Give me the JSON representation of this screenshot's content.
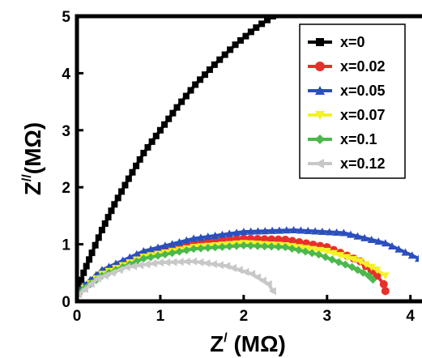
{
  "chart_data": {
    "type": "scatter",
    "title": "",
    "xlabel": {
      "main": "Z",
      "sup": "/",
      "unit": " (MΩ)"
    },
    "ylabel": {
      "main": "Z",
      "sup": "//",
      "unit": "(MΩ)"
    },
    "xlim": [
      0,
      4.1
    ],
    "ylim": [
      0,
      5
    ],
    "xticks": [
      "0",
      "1",
      "2",
      "3",
      "4"
    ],
    "yticks": [
      "0",
      "1",
      "2",
      "3",
      "4",
      "5"
    ],
    "grid": false,
    "legend_position": "top-right",
    "series": [
      {
        "name": "x=0",
        "color": "#000000",
        "marker": "square",
        "points": [
          [
            0.02,
            0.25
          ],
          [
            0.08,
            0.5
          ],
          [
            0.18,
            0.85
          ],
          [
            0.3,
            1.25
          ],
          [
            0.45,
            1.7
          ],
          [
            0.62,
            2.15
          ],
          [
            0.8,
            2.6
          ],
          [
            1.0,
            3.0
          ],
          [
            1.2,
            3.4
          ],
          [
            1.42,
            3.8
          ],
          [
            1.65,
            4.15
          ],
          [
            1.9,
            4.5
          ],
          [
            2.15,
            4.8
          ],
          [
            2.35,
            5.0
          ]
        ]
      },
      {
        "name": "x=0.02",
        "color": "#e8302a",
        "marker": "circle",
        "points": [
          [
            0.02,
            0.15
          ],
          [
            0.3,
            0.5
          ],
          [
            0.8,
            0.82
          ],
          [
            1.4,
            1.02
          ],
          [
            2.0,
            1.1
          ],
          [
            2.5,
            1.08
          ],
          [
            3.0,
            0.95
          ],
          [
            3.4,
            0.7
          ],
          [
            3.6,
            0.45
          ],
          [
            3.68,
            0.3
          ],
          [
            3.7,
            0.18
          ]
        ]
      },
      {
        "name": "x=0.05",
        "color": "#2b4fbd",
        "marker": "triangle-up",
        "points": [
          [
            0.02,
            0.2
          ],
          [
            0.3,
            0.55
          ],
          [
            0.8,
            0.88
          ],
          [
            1.4,
            1.1
          ],
          [
            2.0,
            1.22
          ],
          [
            2.6,
            1.25
          ],
          [
            3.2,
            1.2
          ],
          [
            3.7,
            1.02
          ],
          [
            4.1,
            0.75
          ]
        ]
      },
      {
        "name": "x=0.07",
        "color": "#f2f226",
        "marker": "triangle-down",
        "points": [
          [
            0.02,
            0.15
          ],
          [
            0.3,
            0.48
          ],
          [
            0.8,
            0.78
          ],
          [
            1.4,
            0.95
          ],
          [
            2.0,
            1.02
          ],
          [
            2.5,
            0.98
          ],
          [
            3.0,
            0.88
          ],
          [
            3.4,
            0.7
          ],
          [
            3.6,
            0.55
          ],
          [
            3.7,
            0.45
          ]
        ]
      },
      {
        "name": "x=0.1",
        "color": "#4cb84c",
        "marker": "diamond",
        "points": [
          [
            0.02,
            0.15
          ],
          [
            0.3,
            0.45
          ],
          [
            0.8,
            0.75
          ],
          [
            1.4,
            0.92
          ],
          [
            2.0,
            0.98
          ],
          [
            2.5,
            0.95
          ],
          [
            2.9,
            0.82
          ],
          [
            3.3,
            0.6
          ],
          [
            3.5,
            0.45
          ],
          [
            3.55,
            0.38
          ]
        ]
      },
      {
        "name": "x=0.12",
        "color": "#c8c8c8",
        "marker": "triangle-left",
        "points": [
          [
            0.02,
            0.12
          ],
          [
            0.25,
            0.4
          ],
          [
            0.6,
            0.6
          ],
          [
            1.0,
            0.68
          ],
          [
            1.4,
            0.7
          ],
          [
            1.8,
            0.62
          ],
          [
            2.1,
            0.48
          ],
          [
            2.3,
            0.3
          ],
          [
            2.35,
            0.18
          ]
        ]
      }
    ]
  }
}
